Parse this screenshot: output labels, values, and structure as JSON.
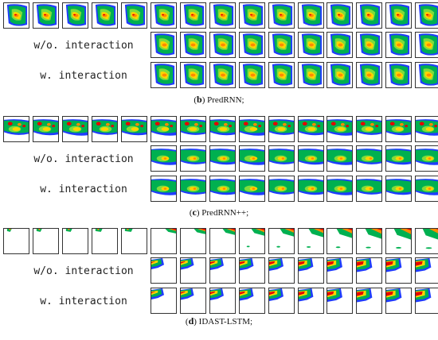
{
  "panels": [
    {
      "id": "b",
      "rows": [
        {
          "label": "",
          "frames": 15,
          "start": 0,
          "palette": "predrnn"
        },
        {
          "label": "w/o. interaction",
          "frames": 10,
          "start": 5,
          "palette": "predrnn"
        },
        {
          "label": "w. interaction",
          "frames": 10,
          "start": 5,
          "palette": "predrnn"
        }
      ],
      "caption_letter": "b",
      "caption_text": "PredRNN;"
    },
    {
      "id": "c",
      "rows": [
        {
          "label": "",
          "frames": 15,
          "start": 0,
          "palette": "predrnnpp"
        },
        {
          "label": "w/o. interaction",
          "frames": 10,
          "start": 5,
          "palette": "predrnnpp"
        },
        {
          "label": "w. interaction",
          "frames": 10,
          "start": 5,
          "palette": "predrnnpp"
        }
      ],
      "caption_letter": "c",
      "caption_text": "PredRNN++;"
    },
    {
      "id": "d",
      "rows": [
        {
          "label": "",
          "frames": 15,
          "start": 0,
          "palette": "idast"
        },
        {
          "label": "w/o. interaction",
          "frames": 10,
          "start": 5,
          "palette": "idast"
        },
        {
          "label": "w. interaction",
          "frames": 10,
          "start": 5,
          "palette": "idast"
        }
      ],
      "caption_letter": "d",
      "caption_text": "IDAST-LSTM;"
    }
  ],
  "colors": {
    "blue": "#1f3cff",
    "green": "#00b050",
    "yellow": "#ffd400",
    "orange": "#ff8a00",
    "red": "#e60000",
    "lightgreen": "#7ddc3c"
  }
}
